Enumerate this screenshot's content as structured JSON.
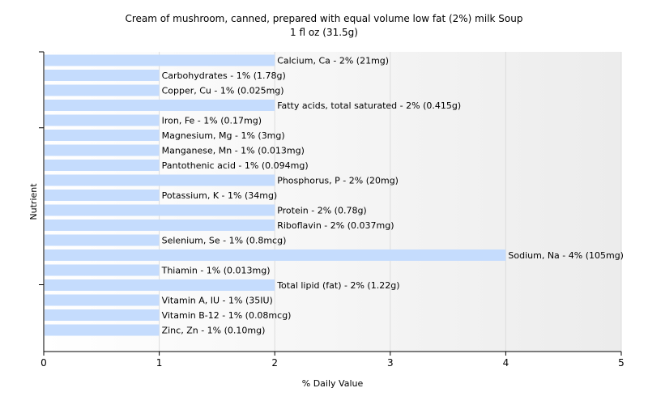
{
  "chart_data": {
    "type": "bar",
    "orientation": "horizontal",
    "title": "Cream of mushroom, canned, prepared with equal volume low fat (2%) milk Soup",
    "subtitle": "1 fl oz (31.5g)",
    "xlabel": "% Daily Value",
    "ylabel": "Nutrient",
    "xlim": [
      0,
      5
    ],
    "xticks": [
      "0",
      "1",
      "2",
      "3",
      "4",
      "5"
    ],
    "grid": "vertical",
    "bar_color": "#c5dcfd",
    "categories": [
      "Calcium, Ca",
      "Carbohydrates",
      "Copper, Cu",
      "Fatty acids, total saturated",
      "Iron, Fe",
      "Magnesium, Mg",
      "Manganese, Mn",
      "Pantothenic acid",
      "Phosphorus, P",
      "Potassium, K",
      "Protein",
      "Riboflavin",
      "Selenium, Se",
      "Sodium, Na",
      "Thiamin",
      "Total lipid (fat)",
      "Vitamin A, IU",
      "Vitamin B-12",
      "Zinc, Zn"
    ],
    "values": [
      2,
      1,
      1,
      2,
      1,
      1,
      1,
      1,
      2,
      1,
      2,
      2,
      1,
      4,
      1,
      2,
      1,
      1,
      1
    ],
    "labels": [
      "Calcium, Ca - 2% (21mg)",
      "Carbohydrates - 1% (1.78g)",
      "Copper, Cu - 1% (0.025mg)",
      "Fatty acids, total saturated - 2% (0.415g)",
      "Iron, Fe - 1% (0.17mg)",
      "Magnesium, Mg - 1% (3mg)",
      "Manganese, Mn - 1% (0.013mg)",
      "Pantothenic acid - 1% (0.094mg)",
      "Phosphorus, P - 2% (20mg)",
      "Potassium, K - 1% (34mg)",
      "Protein - 2% (0.78g)",
      "Riboflavin - 2% (0.037mg)",
      "Selenium, Se - 1% (0.8mcg)",
      "Sodium, Na - 4% (105mg)",
      "Thiamin - 1% (0.013mg)",
      "Total lipid (fat) - 2% (1.22g)",
      "Vitamin A, IU - 1% (35IU)",
      "Vitamin B-12 - 1% (0.08mcg)",
      "Zinc, Zn - 1% (0.10mg)"
    ]
  }
}
